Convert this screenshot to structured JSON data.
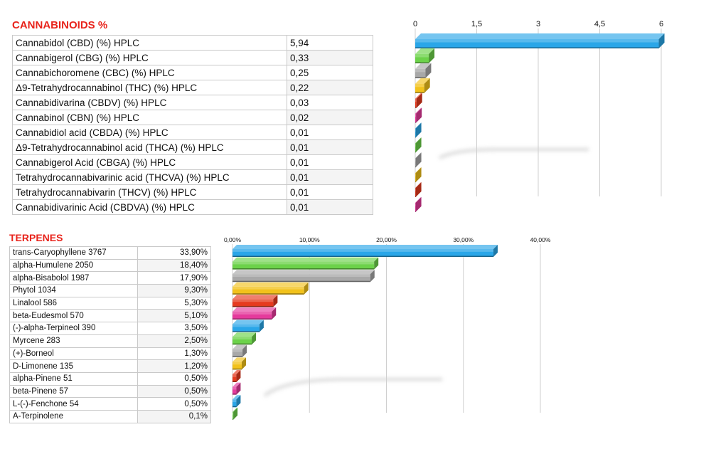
{
  "cannabinoids": {
    "title": "CANNABINOIDS %",
    "rows": [
      {
        "name": "Cannabidol (CBD) (%) HPLC",
        "value": "5,94"
      },
      {
        "name": "Cannabigerol (CBG) (%) HPLC",
        "value": "0,33"
      },
      {
        "name": "Cannabichoromene (CBC) (%) HPLC",
        "value": "0,25"
      },
      {
        "name": "Δ9-Tetrahydrocannabinol (THC) (%) HPLC",
        "value": "0,22"
      },
      {
        "name": "Cannabidivarina (CBDV) (%) HPLC",
        "value": "0,03"
      },
      {
        "name": "Cannabinol (CBN) (%) HPLC",
        "value": "0,02"
      },
      {
        "name": "Cannabidiol acid (CBDA) (%) HPLC",
        "value": "0,01"
      },
      {
        "name": "Δ9-Tetrahydrocannabinol acid (THCA) (%) HPLC",
        "value": "0,01"
      },
      {
        "name": "Cannabigerol Acid (CBGA) (%) HPLC",
        "value": "0,01"
      },
      {
        "name": "Tetrahydrocannabivarinic acid (THCVA) (%) HPLC",
        "value": "0,01"
      },
      {
        "name": "Tetrahydrocannabivarin (THCV) (%) HPLC",
        "value": "0,01"
      },
      {
        "name": "Cannabidivarinic Acid (CBDVA) (%) HPLC",
        "value": "0,01"
      }
    ]
  },
  "terpenes": {
    "title": "TERPENES",
    "rows": [
      {
        "name": "trans-Caryophyllene 3767",
        "value": "33,90%"
      },
      {
        "name": "alpha-Humulene 2050",
        "value": "18,40%"
      },
      {
        "name": "alpha-Bisabolol 1987",
        "value": "17,90%"
      },
      {
        "name": "Phytol 1034",
        "value": "9,30%"
      },
      {
        "name": "Linalool 586",
        "value": "5,30%"
      },
      {
        "name": "beta-Eudesmol 570",
        "value": "5,10%"
      },
      {
        "name": "(-)-alpha-Terpineol 390",
        "value": "3,50%"
      },
      {
        "name": "Myrcene 283",
        "value": "2,50%"
      },
      {
        "name": "(+)-Borneol",
        "value": "1,30%"
      },
      {
        "name": "D-Limonene 135",
        "value": "1,20%"
      },
      {
        "name": "alpha-Pinene 51",
        "value": "0,50%"
      },
      {
        "name": "beta-Pinene 57",
        "value": "0,50%"
      },
      {
        "name": "L-(-)-Fenchone 54",
        "value": "0,50%"
      },
      {
        "name": "A-Terpinolene",
        "value": "0,1%"
      }
    ]
  },
  "chart_data": [
    {
      "type": "bar",
      "orientation": "horizontal",
      "categories": [
        "Cannabidol (CBD) (%) HPLC",
        "Cannabigerol (CBG) (%) HPLC",
        "Cannabichoromene (CBC) (%) HPLC",
        "Δ9-Tetrahydrocannabinol (THC) (%) HPLC",
        "Cannabidivarina (CBDV) (%) HPLC",
        "Cannabinol (CBN) (%) HPLC",
        "Cannabidiol acid (CBDA) (%) HPLC",
        "Δ9-Tetrahydrocannabinol acid (THCA) (%) HPLC",
        "Cannabigerol Acid (CBGA) (%) HPLC",
        "Tetrahydrocannabivarinic acid (THCVA) (%) HPLC",
        "Tetrahydrocannabivarin (THCV) (%) HPLC",
        "Cannabidivarinic Acid (CBDVA) (%) HPLC"
      ],
      "values": [
        5.94,
        0.33,
        0.25,
        0.22,
        0.03,
        0.02,
        0.01,
        0.01,
        0.01,
        0.01,
        0.01,
        0.01
      ],
      "xlim": [
        0,
        6
      ],
      "ticks": [
        0,
        1.5,
        3,
        4.5,
        6
      ],
      "tick_labels": [
        "0",
        "1,5",
        "3",
        "4,5",
        "6"
      ],
      "grid": true,
      "axis_position": "top",
      "colors": [
        "#2aa6e8",
        "#6cd24a",
        "#a8a8a8",
        "#f2c21b",
        "#e63a1f",
        "#e53a9c",
        "#2aa6e8",
        "#6cd24a",
        "#a8a8a8",
        "#f2c21b",
        "#e63a1f",
        "#e53a9c"
      ]
    },
    {
      "type": "bar",
      "orientation": "horizontal",
      "categories": [
        "trans-Caryophyllene 3767",
        "alpha-Humulene 2050",
        "alpha-Bisabolol 1987",
        "Phytol 1034",
        "Linalool 586",
        "beta-Eudesmol 570",
        "(-)-alpha-Terpineol 390",
        "Myrcene 283",
        "(+)-Borneol",
        "D-Limonene 135",
        "alpha-Pinene 51",
        "beta-Pinene 57",
        "L-(-)-Fenchone 54",
        "A-Terpinolene"
      ],
      "values": [
        33.9,
        18.4,
        17.9,
        9.3,
        5.3,
        5.1,
        3.5,
        2.5,
        1.3,
        1.2,
        0.5,
        0.5,
        0.5,
        0.1
      ],
      "xlim": [
        0,
        40
      ],
      "ticks": [
        0,
        10,
        20,
        30,
        40
      ],
      "tick_labels": [
        "0,00%",
        "10,00%",
        "20,00%",
        "30,00%",
        "40,00%"
      ],
      "grid": true,
      "axis_position": "top",
      "colors": [
        "#2aa6e8",
        "#6cd24a",
        "#a8a8a8",
        "#f2c21b",
        "#e63a1f",
        "#e53a9c",
        "#2aa6e8",
        "#6cd24a",
        "#a8a8a8",
        "#f2c21b",
        "#e63a1f",
        "#e53a9c",
        "#2aa6e8",
        "#6cd24a"
      ]
    }
  ]
}
